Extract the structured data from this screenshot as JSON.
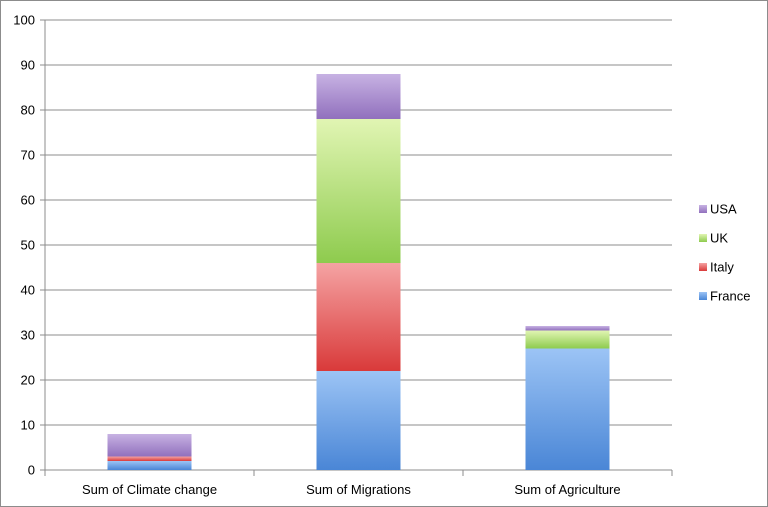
{
  "chart_data": {
    "type": "bar",
    "stacked": true,
    "categories": [
      "Sum of Climate change",
      "Sum of Migrations",
      "Sum of Agriculture"
    ],
    "series": [
      {
        "name": "France",
        "values": [
          2,
          22,
          27
        ],
        "color": "#4a86d6",
        "color_light": "#9cc4f5"
      },
      {
        "name": "Italy",
        "values": [
          1,
          24,
          0
        ],
        "color": "#d93a3a",
        "color_light": "#f5a3a3"
      },
      {
        "name": "UK",
        "values": [
          0,
          32,
          4
        ],
        "color": "#8ecb4e",
        "color_light": "#e1f5b3"
      },
      {
        "name": "USA",
        "values": [
          5,
          10,
          1
        ],
        "color": "#9170bd",
        "color_light": "#c7b2e3"
      }
    ],
    "ylim": [
      0,
      100
    ],
    "yticks": [
      0,
      10,
      20,
      30,
      40,
      50,
      60,
      70,
      80,
      90,
      100
    ],
    "grid": true,
    "legend": "right",
    "title": "",
    "xlabel": "",
    "ylabel": ""
  }
}
